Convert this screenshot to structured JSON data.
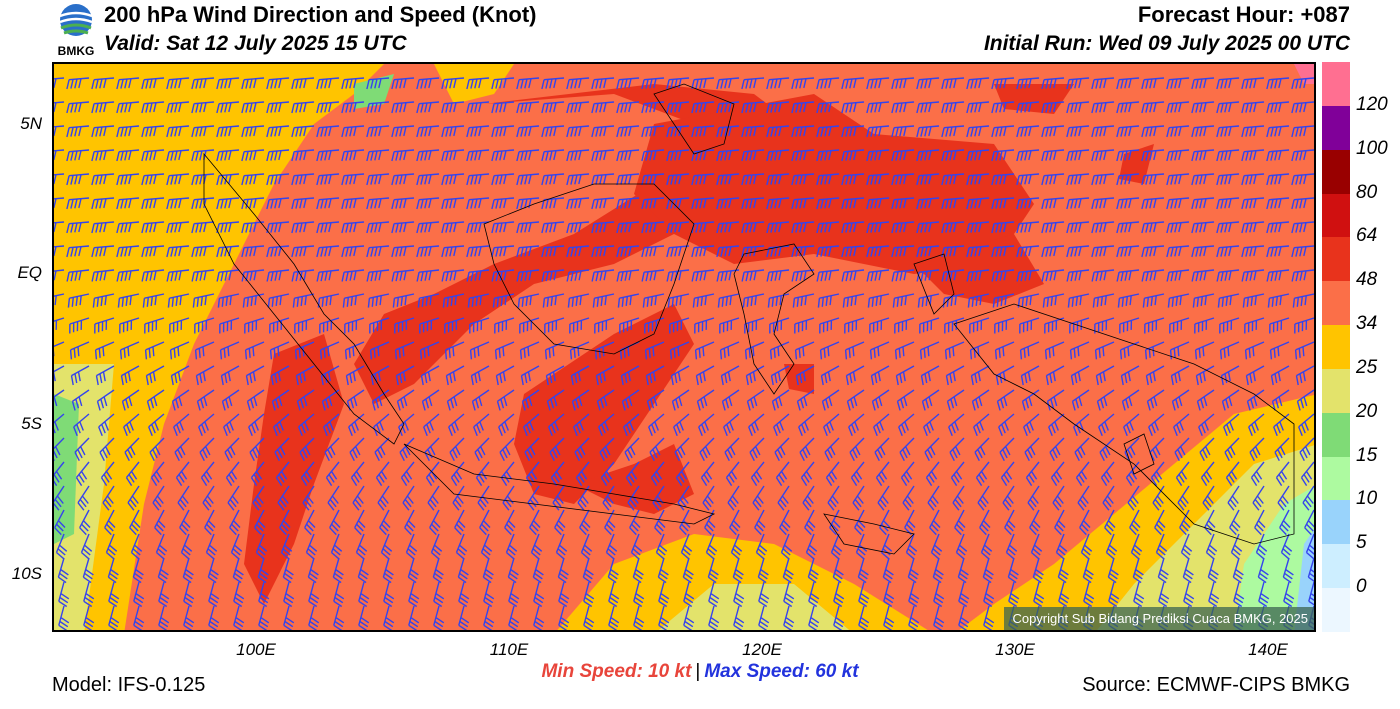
{
  "header": {
    "logo_text": "BMKG",
    "title": "200 hPa Wind Direction and Speed (Knot)",
    "valid": "Valid: Sat 12 July 2025 15 UTC",
    "forecast_hour": "Forecast Hour: +087",
    "initial_run": "Initial Run: Wed 09 July 2025 00 UTC"
  },
  "map": {
    "lat_labels": [
      "5N",
      "EQ",
      "5S",
      "10S"
    ],
    "lon_labels": [
      "100E",
      "110E",
      "120E",
      "130E",
      "140E"
    ],
    "copyright": "Copyright Sub Bidang Prediksi Cuaca BMKG, 2025",
    "background_color": "#fb6f48",
    "barb_color": "#3344ee",
    "wind_regimes": [
      {
        "region": "northern",
        "direction": "easterly"
      },
      {
        "region": "southern",
        "direction": "south-easterly"
      }
    ]
  },
  "colorbar": {
    "levels": [
      "120",
      "100",
      "80",
      "64",
      "48",
      "34",
      "25",
      "20",
      "15",
      "10",
      "5",
      "0"
    ],
    "colors": [
      "#ff6f91",
      "#800099",
      "#990000",
      "#d01010",
      "#e8331c",
      "#fb6f48",
      "#ffc400",
      "#e3e36b",
      "#7fdb76",
      "#adfaa0",
      "#99d3fb",
      "#cdeeff",
      "#ecf7ff"
    ]
  },
  "footer": {
    "min_speed": "Min Speed:  10 kt",
    "max_speed": "Max Speed:  60 kt",
    "separator": "|",
    "model": "Model: IFS-0.125",
    "source": "Source: ECMWF-CIPS BMKG"
  }
}
